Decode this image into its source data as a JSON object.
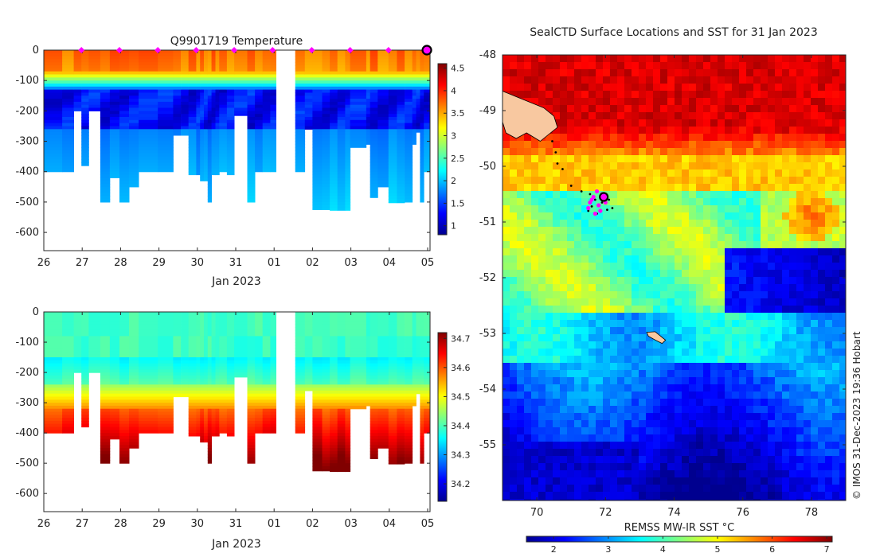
{
  "credit": "© IMOS 31-Dec-2023 19:36 Hobart",
  "colors": {
    "jet": [
      "#00008f",
      "#0000ff",
      "#0080ff",
      "#00ffff",
      "#80ff80",
      "#ffff00",
      "#ff8000",
      "#ff0000",
      "#800000"
    ],
    "profile_marker": "#ff00ff",
    "track": "#000000",
    "land": "#f8c8a0"
  },
  "chart_data": [
    {
      "id": "temperature",
      "type": "heatmap",
      "title": "Q9901719  Temperature",
      "xlabel": "Jan 2023",
      "x_tick_labels": [
        "26",
        "27",
        "28",
        "29",
        "30",
        "31",
        "01",
        "02",
        "03",
        "04",
        "05"
      ],
      "xlim": [
        0,
        10
      ],
      "ylim": [
        -660,
        0
      ],
      "y_ticks": [
        0,
        -100,
        -200,
        -300,
        -400,
        -500,
        -600
      ],
      "colorbar": {
        "min": 0.8,
        "max": 4.6,
        "ticks": [
          1,
          1.5,
          2,
          2.5,
          3,
          3.5,
          4,
          4.5
        ]
      },
      "profile_days": [
        0.98,
        1.97,
        2.97,
        3.97,
        4.96,
        5.96,
        6.98,
        7.98,
        8.98,
        9.98
      ],
      "last_profile_day": 9.98,
      "profiles": [
        {
          "x0": 0.0,
          "x1": 0.48,
          "depth": 400
        },
        {
          "x0": 0.48,
          "x1": 0.78,
          "depth": 400
        },
        {
          "x0": 0.78,
          "x1": 0.98,
          "depth": 200
        },
        {
          "x0": 0.98,
          "x1": 1.17,
          "depth": 380
        },
        {
          "x0": 1.17,
          "x1": 1.47,
          "depth": 200
        },
        {
          "x0": 1.47,
          "x1": 1.72,
          "depth": 500
        },
        {
          "x0": 1.72,
          "x1": 1.97,
          "depth": 420
        },
        {
          "x0": 1.97,
          "x1": 2.22,
          "depth": 500
        },
        {
          "x0": 2.22,
          "x1": 2.47,
          "depth": 450
        },
        {
          "x0": 2.47,
          "x1": 2.97,
          "depth": 400
        },
        {
          "x0": 2.97,
          "x1": 3.37,
          "depth": 400
        },
        {
          "x0": 3.37,
          "x1": 3.57,
          "depth": 280
        },
        {
          "x0": 3.57,
          "x1": 3.77,
          "depth": 280
        },
        {
          "x0": 3.77,
          "x1": 3.97,
          "depth": 410
        },
        {
          "x0": 3.97,
          "x1": 4.07,
          "depth": 410
        },
        {
          "x0": 4.07,
          "x1": 4.17,
          "depth": 430
        },
        {
          "x0": 4.17,
          "x1": 4.27,
          "depth": 430
        },
        {
          "x0": 4.27,
          "x1": 4.37,
          "depth": 500
        },
        {
          "x0": 4.37,
          "x1": 4.47,
          "depth": 410
        },
        {
          "x0": 4.47,
          "x1": 4.57,
          "depth": 410
        },
        {
          "x0": 4.57,
          "x1": 4.77,
          "depth": 400
        },
        {
          "x0": 4.77,
          "x1": 4.96,
          "depth": 410
        },
        {
          "x0": 4.96,
          "x1": 5.3,
          "depth": 215
        },
        {
          "x0": 5.3,
          "x1": 5.5,
          "depth": 500
        },
        {
          "x0": 5.5,
          "x1": 5.7,
          "depth": 400
        },
        {
          "x0": 5.7,
          "x1": 5.9,
          "depth": 400
        },
        {
          "x0": 5.9,
          "x1": 6.05,
          "depth": 400
        },
        {
          "x0": 6.55,
          "x1": 6.8,
          "depth": 400
        },
        {
          "x0": 6.8,
          "x1": 7.0,
          "depth": 260
        },
        {
          "x0": 7.0,
          "x1": 7.25,
          "depth": 525
        },
        {
          "x0": 7.25,
          "x1": 7.45,
          "depth": 525
        },
        {
          "x0": 7.45,
          "x1": 7.65,
          "depth": 527
        },
        {
          "x0": 7.65,
          "x1": 7.85,
          "depth": 527
        },
        {
          "x0": 7.85,
          "x1": 7.98,
          "depth": 527
        },
        {
          "x0": 7.98,
          "x1": 8.4,
          "depth": 320
        },
        {
          "x0": 8.4,
          "x1": 8.5,
          "depth": 310
        },
        {
          "x0": 8.5,
          "x1": 8.7,
          "depth": 485
        },
        {
          "x0": 8.7,
          "x1": 8.98,
          "depth": 450
        },
        {
          "x0": 8.98,
          "x1": 9.2,
          "depth": 502
        },
        {
          "x0": 9.2,
          "x1": 9.4,
          "depth": 502
        },
        {
          "x0": 9.4,
          "x1": 9.6,
          "depth": 500
        },
        {
          "x0": 9.6,
          "x1": 9.7,
          "depth": 310
        },
        {
          "x0": 9.7,
          "x1": 9.8,
          "depth": 270
        },
        {
          "x0": 9.8,
          "x1": 9.9,
          "depth": 500
        },
        {
          "x0": 9.9,
          "x1": 10.05,
          "depth": 400
        }
      ]
    },
    {
      "id": "salinity",
      "type": "heatmap",
      "title": "",
      "xlabel": "Jan 2023",
      "x_tick_labels": [
        "26",
        "27",
        "28",
        "29",
        "30",
        "31",
        "01",
        "02",
        "03",
        "04",
        "05"
      ],
      "xlim": [
        0,
        10
      ],
      "ylim": [
        -660,
        0
      ],
      "y_ticks": [
        0,
        -100,
        -200,
        -300,
        -400,
        -500,
        -600
      ],
      "colorbar": {
        "min": 34.14,
        "max": 34.72,
        "ticks": [
          34.2,
          34.3,
          34.4,
          34.5,
          34.6,
          34.7
        ]
      }
    },
    {
      "id": "sst_map",
      "type": "heatmap",
      "title": "SealCTD Surface Locations and SST for 31 Jan 2023",
      "xlim": [
        69,
        79
      ],
      "ylim": [
        -56,
        -48
      ],
      "x_ticks": [
        70,
        72,
        74,
        76,
        78
      ],
      "y_ticks": [
        -48,
        -49,
        -50,
        -51,
        -52,
        -53,
        -54,
        -55
      ],
      "colorbar": {
        "label": "REMSS MW-IR SST °C",
        "min": 1.5,
        "max": 7.1,
        "ticks": [
          2,
          3,
          4,
          5,
          6,
          7
        ]
      },
      "track_lon": [
        70.45,
        70.55,
        70.6,
        70.75,
        71.0,
        71.3,
        71.55,
        71.7,
        71.9,
        72.1,
        72.2,
        72.05,
        71.85,
        71.6,
        71.5,
        71.75,
        71.95
      ],
      "track_lat": [
        -49.55,
        -49.75,
        -49.95,
        -50.05,
        -50.35,
        -50.45,
        -50.5,
        -50.6,
        -50.65,
        -50.6,
        -50.75,
        -50.78,
        -50.8,
        -50.72,
        -50.8,
        -50.85,
        -50.55
      ],
      "marker_lon": [
        71.6,
        71.8,
        71.5,
        72.0,
        71.7,
        71.9,
        71.65,
        71.85,
        71.55,
        71.75
      ],
      "marker_lat": [
        -50.6,
        -50.7,
        -50.75,
        -50.65,
        -50.85,
        -50.5,
        -50.55,
        -50.8,
        -50.65,
        -50.45
      ],
      "last_position": {
        "lon": 71.95,
        "lat": -50.55
      },
      "islands": [
        {
          "name": "kerguelen",
          "lon": [
            69,
            69.4,
            69.8,
            70.2,
            70.5,
            70.6,
            70.3,
            70.1,
            69.7,
            69.4,
            69.1,
            69
          ],
          "lat": [
            -48.65,
            -48.75,
            -48.85,
            -48.95,
            -49.1,
            -49.3,
            -49.45,
            -49.55,
            -49.4,
            -49.5,
            -49.4,
            -49.2
          ]
        },
        {
          "name": "heard",
          "lon": [
            73.2,
            73.45,
            73.75,
            73.65,
            73.45,
            73.25
          ],
          "lat": [
            -52.98,
            -52.97,
            -53.12,
            -53.18,
            -53.12,
            -53.05
          ]
        }
      ]
    }
  ]
}
